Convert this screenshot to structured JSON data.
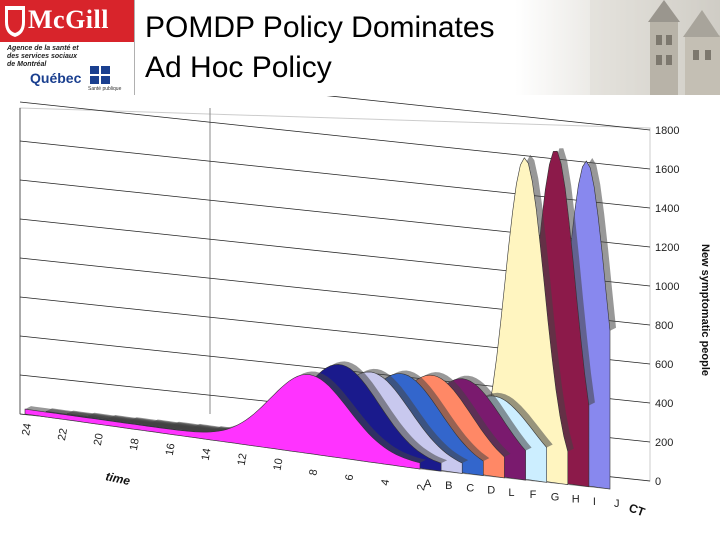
{
  "header": {
    "logo_text": "McGill",
    "agency_text": "Agence de la santé et des services sociaux de Montréal",
    "quebec_text": "Québec",
    "sante_text": "Santé publique",
    "title": "POMDP Policy Dominates\nAd Hoc Policy"
  },
  "chart_data": {
    "type": "area",
    "subtype": "3d-ribbon",
    "title": "",
    "xlabel": "time",
    "ylabel": "New symptomatic people",
    "zlabel": "CT",
    "x": [
      24,
      22,
      20,
      18,
      16,
      14,
      12,
      10,
      8,
      6,
      4,
      2
    ],
    "z_categories": [
      "A",
      "B",
      "C",
      "D",
      "L",
      "F",
      "G",
      "H",
      "I",
      "J"
    ],
    "y_ticks": [
      0,
      200,
      400,
      600,
      800,
      1000,
      1200,
      1400,
      1600,
      1800
    ],
    "ylim": [
      0,
      1800
    ],
    "series": [
      {
        "name": "A",
        "color": "#ff33ff",
        "peak": 380
      },
      {
        "name": "B",
        "color": "#1a1a8c",
        "peak": 450
      },
      {
        "name": "C",
        "color": "#c8c8ee",
        "peak": 430
      },
      {
        "name": "D",
        "color": "#3366cc",
        "peak": 440
      },
      {
        "name": "L",
        "color": "#ff8866",
        "peak": 450
      },
      {
        "name": "F",
        "color": "#7a1a6e",
        "peak": 450
      },
      {
        "name": "G",
        "color": "#cceeff",
        "peak": 380
      },
      {
        "name": "H",
        "color": "#fff5c0",
        "peak": 1620
      },
      {
        "name": "I",
        "color": "#8c1a4a",
        "peak": 1680
      },
      {
        "name": "J",
        "color": "#8888ee",
        "peak": 1640
      }
    ],
    "grid": true,
    "legend": "none"
  }
}
